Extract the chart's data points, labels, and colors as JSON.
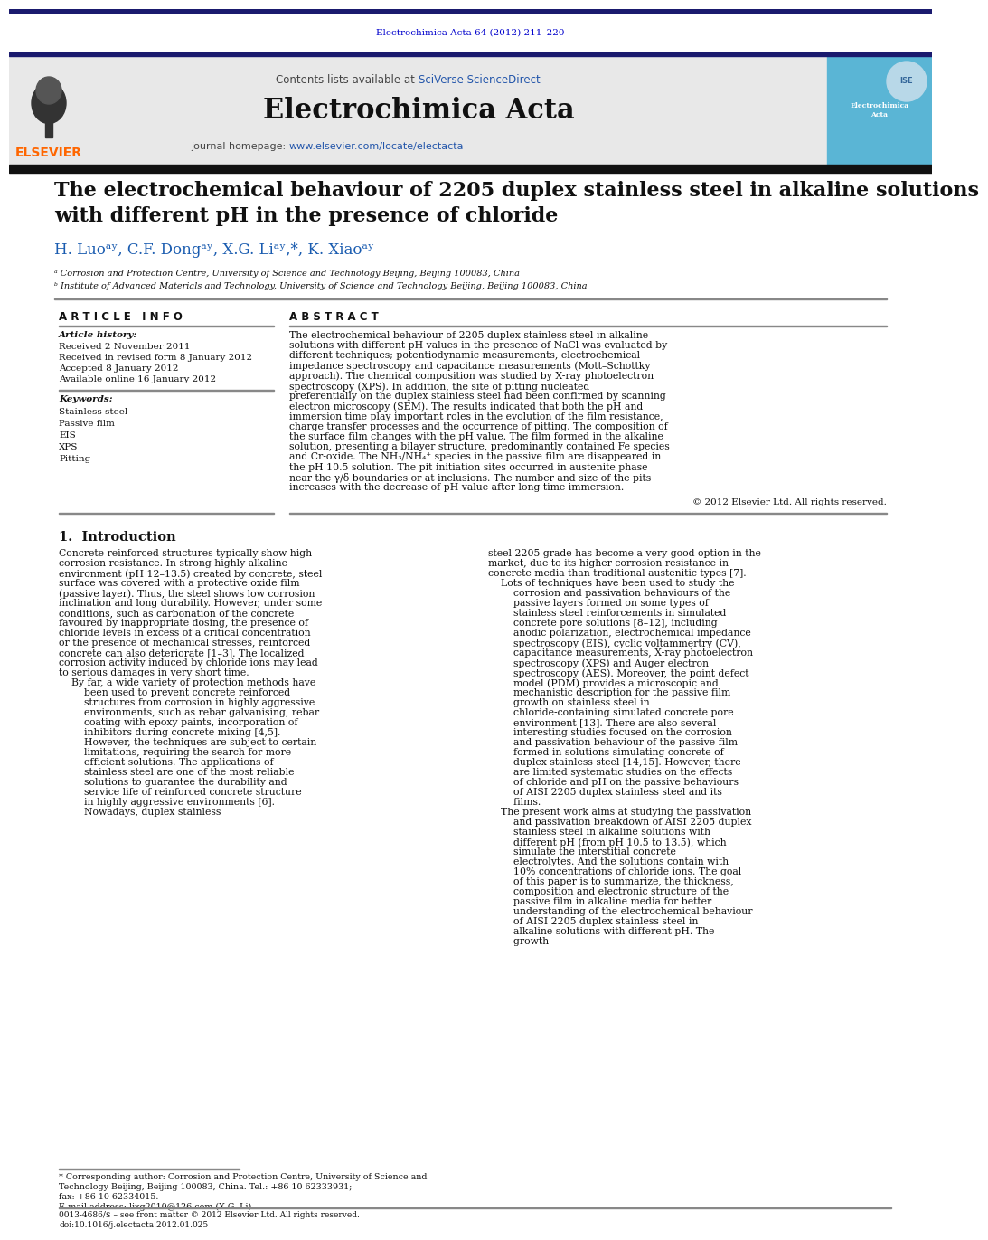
{
  "page_bg": "#ffffff",
  "top_bar_color": "#1a1a6e",
  "journal_ref_text": "Electrochimica Acta 64 (2012) 211–220",
  "journal_ref_color": "#0000cc",
  "header_bg": "#e8e8e8",
  "header_sciverse_color": "#2255aa",
  "journal_title": "Electrochimica Acta",
  "homepage_link_color": "#2255aa",
  "elsevier_color": "#ff6600",
  "article_title_line1": "The electrochemical behaviour of 2205 duplex stainless steel in alkaline solutions",
  "article_title_line2": "with different pH in the presence of chloride",
  "authors_line": "H. Luoᵃʸ, C.F. Dongᵃʸ, X.G. Liᵃʸ,*, K. Xiaoᵃʸ",
  "affil_a": "ᵃ Corrosion and Protection Centre, University of Science and Technology Beijing, Beijing 100083, China",
  "affil_b": "ᵇ Institute of Advanced Materials and Technology, University of Science and Technology Beijing, Beijing 100083, China",
  "section_article_info": "A R T I C L E   I N F O",
  "section_abstract": "A B S T R A C T",
  "article_history_label": "Article history:",
  "received": "Received 2 November 2011",
  "revised": "Received in revised form 8 January 2012",
  "accepted": "Accepted 8 January 2012",
  "available": "Available online 16 January 2012",
  "keywords_label": "Keywords:",
  "keywords": [
    "Stainless steel",
    "Passive film",
    "EIS",
    "XPS",
    "Pitting"
  ],
  "abstract_text": "The electrochemical behaviour of 2205 duplex stainless steel in alkaline solutions with different pH values in the presence of NaCl was evaluated by different techniques; potentiodynamic measurements, electrochemical impedance spectroscopy and capacitance measurements (Mott–Schottky approach). The chemical composition was studied by X-ray photoelectron spectroscopy (XPS). In addition, the site of pitting nucleated preferentially on the duplex stainless steel had been confirmed by scanning electron microscopy (SEM). The results indicated that both the pH and immersion time play important roles in the evolution of the film resistance, charge transfer processes and the occurrence of pitting. The composition of the surface film changes with the pH value. The film formed in the alkaline solution, presenting a bilayer structure, predominantly contained Fe species and Cr-oxide. The NH₃/NH₄⁺ species in the passive film are disappeared in the pH 10.5 solution. The pit initiation sites occurred in austenite phase near the γ/δ boundaries or at inclusions. The number and size of the pits increases with the decrease of pH value after long time immersion.",
  "copyright": "© 2012 Elsevier Ltd. All rights reserved.",
  "intro_heading": "1.  Introduction",
  "intro_col1": "Concrete reinforced structures typically show high corrosion resistance. In strong highly alkaline environment (pH 12–13.5) created by concrete, steel surface was covered with a protective oxide film (passive layer). Thus, the steel shows low corrosion inclination and long durability. However, under some conditions, such as carbonation of the concrete favoured by inappropriate dosing, the presence of chloride levels in excess of a critical concentration or the presence of mechanical stresses, reinforced concrete can also deteriorate [1–3]. The localized corrosion activity induced by chloride ions may lead to serious damages in very short time.\n    By far, a wide variety of protection methods have been used to prevent concrete reinforced structures from corrosion in highly aggressive environments, such as rebar galvanising, rebar coating with epoxy paints, incorporation of inhibitors during concrete mixing [4,5]. However, the techniques are subject to certain limitations, requiring the search for more efficient solutions. The applications of stainless steel are one of the most reliable solutions to guarantee the durability and service life of reinforced concrete structure in highly aggressive environments [6]. Nowadays, duplex stainless",
  "intro_col2": "steel 2205 grade has become a very good option in the market, due to its higher corrosion resistance in concrete media than traditional austenitic types [7].\n    Lots of techniques have been used to study the corrosion and passivation behaviours of the passive layers formed on some types of stainless steel reinforcements in simulated concrete pore solutions [8–12], including anodic polarization, electrochemical impedance spectroscopy (EIS), cyclic voltammertry (CV), capacitance measurements, X-ray photoelectron spectroscopy (XPS) and Auger electron spectroscopy (AES). Moreover, the point defect model (PDM) provides a microscopic and mechanistic description for the passive film growth on stainless steel in chloride-containing simulated concrete pore environment [13]. There are also several interesting studies focused on the corrosion and passivation behaviour of the passive film formed in solutions simulating concrete of duplex stainless steel [14,15]. However, there are limited systematic studies on the effects of chloride and pH on the passive behaviours of AISI 2205 duplex stainless steel and its films.\n    The present work aims at studying the passivation and passivation breakdown of AISI 2205 duplex stainless steel in alkaline solutions with different pH (from pH 10.5 to 13.5), which simulate the interstitial concrete electrolytes. And the solutions contain with 10% concentrations of chloride ions. The goal of this paper is to summarize, the thickness, composition and electronic structure of the passive film in alkaline media for better understanding of the electrochemical behaviour of AISI 2205 duplex stainless steel in alkaline solutions with different pH. The growth",
  "footnote_line1": "* Corresponding author: Corrosion and Protection Centre, University of Science and",
  "footnote_line2": "Technology Beijing, Beijing 100083, China. Tel.: +86 10 62333931;",
  "footnote_line3": "fax: +86 10 62334015.",
  "footnote_email": "E-mail address: lixg2010@126.com (X.G. Li).",
  "footnote_issn": "0013-4686/$ – see front matter © 2012 Elsevier Ltd. All rights reserved.",
  "footnote_doi": "doi:10.1016/j.electacta.2012.01.025"
}
